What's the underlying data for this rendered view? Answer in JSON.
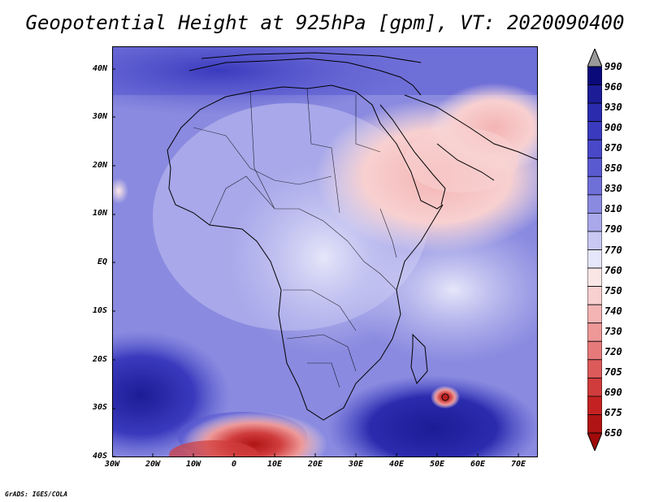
{
  "title": "Geopotential Height at 925hPa [gpm], VT: 2020090400",
  "credit": "GrADS: IGES/COLA",
  "y_axis_labels": [
    "40N",
    "30N",
    "20N",
    "10N",
    "EQ",
    "10S",
    "20S",
    "30S",
    "40S"
  ],
  "x_axis_labels": [
    "30W",
    "20W",
    "10W",
    "0",
    "10E",
    "20E",
    "30E",
    "40E",
    "50E",
    "60E",
    "70E"
  ],
  "colorbar": {
    "labels": [
      "990",
      "960",
      "930",
      "900",
      "870",
      "850",
      "830",
      "810",
      "790",
      "770",
      "760",
      "750",
      "740",
      "730",
      "720",
      "705",
      "690",
      "675",
      "650"
    ],
    "colors": [
      "#9a9a9a",
      "#0a0a7a",
      "#1c1c96",
      "#2b2bae",
      "#3a3abe",
      "#4848c8",
      "#5a5ad0",
      "#6f6fd8",
      "#8a8ae0",
      "#a8a8ea",
      "#c8c8f2",
      "#e6e6fa",
      "#fbe6e6",
      "#f8d0d0",
      "#f4b4b4",
      "#ee9898",
      "#e67a7a",
      "#dc5a5a",
      "#d03c3c",
      "#c42222",
      "#b01414",
      "#a00a0a"
    ]
  }
}
